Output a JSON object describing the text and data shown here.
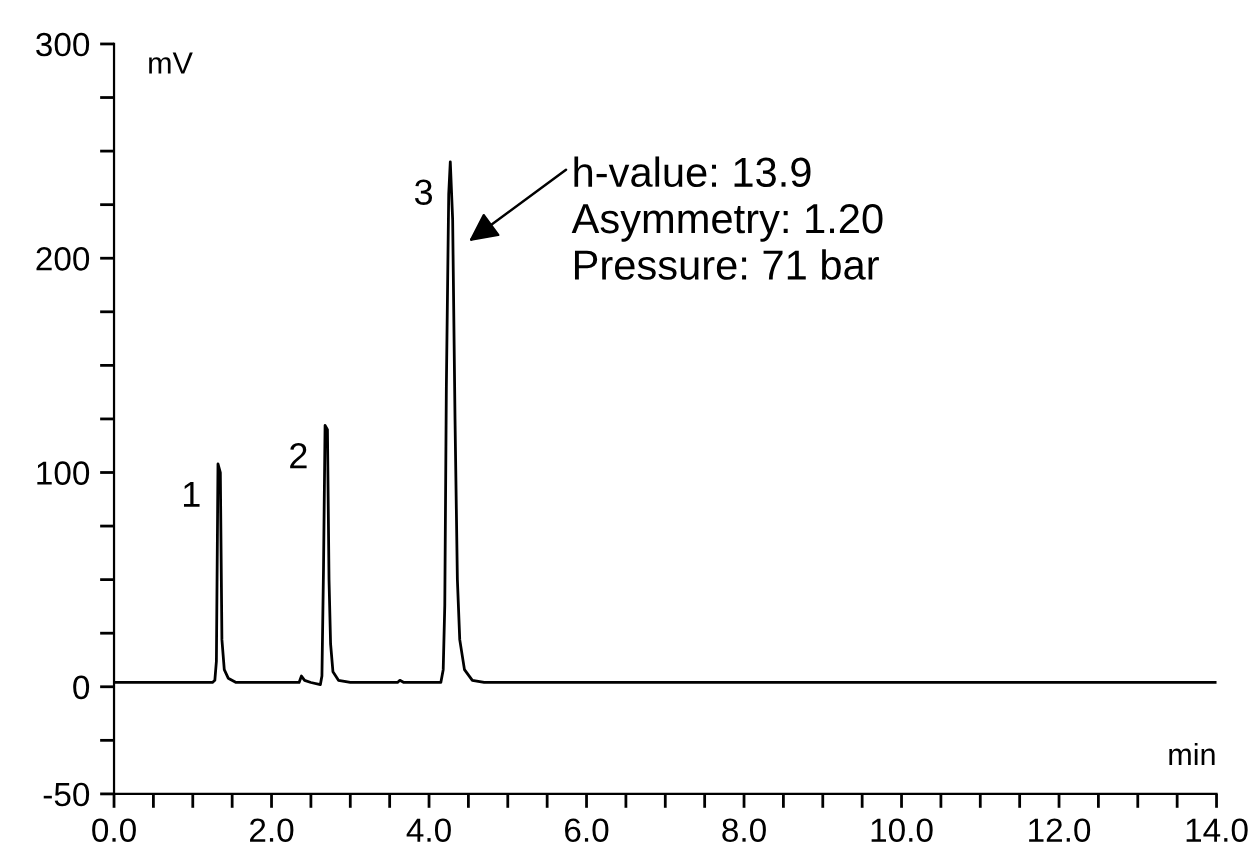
{
  "chart_data": {
    "type": "line",
    "xlabel": "min",
    "ylabel": "mV",
    "xlim": [
      0,
      14
    ],
    "ylim": [
      -50,
      300
    ],
    "xticks": [
      {
        "value": 0,
        "label": "0.0"
      },
      {
        "value": 0.5,
        "label": null
      },
      {
        "value": 1,
        "label": null
      },
      {
        "value": 1.5,
        "label": null
      },
      {
        "value": 2,
        "label": "2.0"
      },
      {
        "value": 2.5,
        "label": null
      },
      {
        "value": 3,
        "label": null
      },
      {
        "value": 3.5,
        "label": null
      },
      {
        "value": 4,
        "label": "4.0"
      },
      {
        "value": 4.5,
        "label": null
      },
      {
        "value": 5,
        "label": null
      },
      {
        "value": 5.5,
        "label": null
      },
      {
        "value": 6,
        "label": "6.0"
      },
      {
        "value": 6.5,
        "label": null
      },
      {
        "value": 7,
        "label": null
      },
      {
        "value": 7.5,
        "label": null
      },
      {
        "value": 8,
        "label": "8.0"
      },
      {
        "value": 8.5,
        "label": null
      },
      {
        "value": 9,
        "label": null
      },
      {
        "value": 9.5,
        "label": null
      },
      {
        "value": 10,
        "label": "10.0"
      },
      {
        "value": 10.5,
        "label": null
      },
      {
        "value": 11,
        "label": null
      },
      {
        "value": 11.5,
        "label": null
      },
      {
        "value": 12,
        "label": "12.0"
      },
      {
        "value": 12.5,
        "label": null
      },
      {
        "value": 13,
        "label": null
      },
      {
        "value": 13.5,
        "label": null
      },
      {
        "value": 14,
        "label": "14.0"
      }
    ],
    "yticks": [
      -50,
      {
        "value": -25,
        "label": null
      },
      0,
      {
        "value": 25,
        "label": null
      },
      {
        "value": 50,
        "label": null
      },
      {
        "value": 75,
        "label": null
      },
      100,
      {
        "value": 125,
        "label": null
      },
      {
        "value": 150,
        "label": null
      },
      {
        "value": 175,
        "label": null
      },
      200,
      {
        "value": 225,
        "label": null
      },
      {
        "value": 250,
        "label": null
      },
      {
        "value": 275,
        "label": null
      },
      300
    ],
    "grid": false,
    "legend": false,
    "marker": "none",
    "line_style": "solid",
    "series": [
      {
        "color": "#000000",
        "x": [
          0,
          1.25,
          1.28,
          1.3,
          1.32,
          1.35,
          1.37,
          1.4,
          1.45,
          1.55,
          2.35,
          2.38,
          2.42,
          2.5,
          2.62,
          2.64,
          2.66,
          2.68,
          2.71,
          2.73,
          2.75,
          2.78,
          2.85,
          3.0,
          3.6,
          3.63,
          3.68,
          4.15,
          4.18,
          4.2,
          4.22,
          4.25,
          4.27,
          4.3,
          4.33,
          4.36,
          4.39,
          4.45,
          4.55,
          4.7,
          14
        ],
        "values": [
          2,
          2,
          3,
          12,
          104,
          100,
          22,
          8,
          4,
          2,
          2,
          5,
          3,
          2,
          1,
          5,
          55,
          122,
          120,
          50,
          20,
          7,
          3,
          2,
          2,
          3,
          2,
          2,
          8,
          38,
          140,
          230,
          245,
          218,
          125,
          50,
          22,
          8,
          3,
          2,
          2
        ]
      }
    ],
    "annotations": [
      {
        "text": "1",
        "x": 1.32,
        "y": 104
      },
      {
        "text": "2",
        "x": 2.68,
        "y": 122
      },
      {
        "text": "3",
        "x": 4.27,
        "y": 245
      },
      "h-value: 13.9\nAsymmetry: 1.20\nPressure: 71 bar"
    ]
  }
}
